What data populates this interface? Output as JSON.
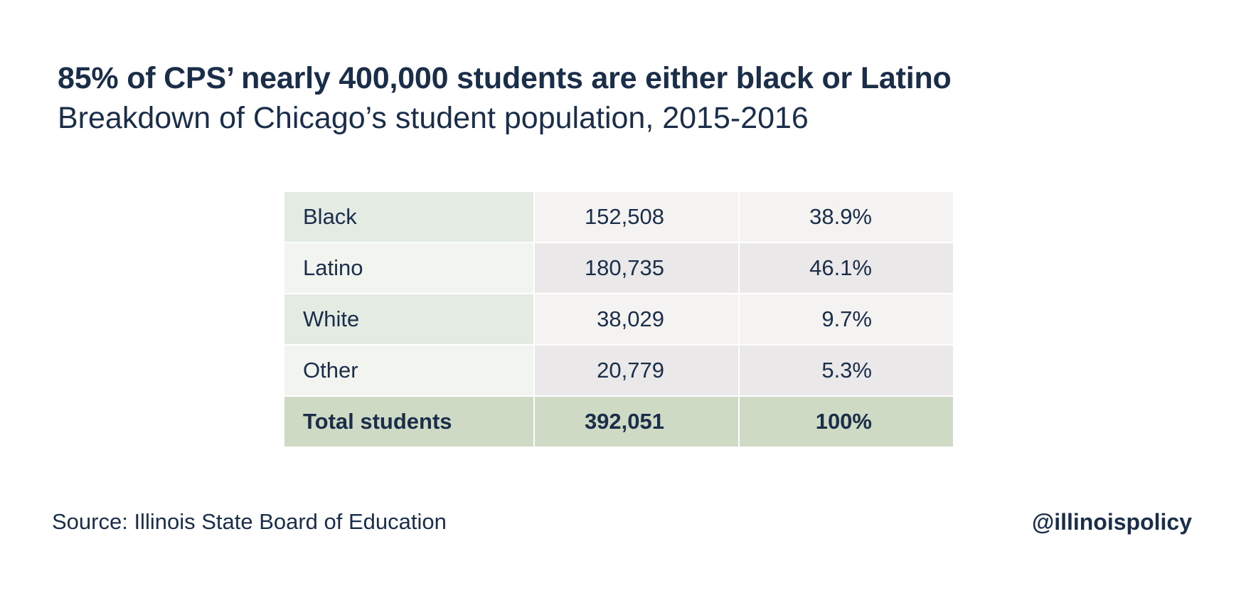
{
  "title": "85% of CPS’ nearly 400,000 students are either black or Latino",
  "subtitle": "Breakdown of Chicago’s student population, 2015-2016",
  "source": "Source: Illinois State Board of Education",
  "handle": "@illinoispolicy",
  "colors": {
    "text": "#1a2e4a",
    "label_col_odd": "#e4ebe2",
    "label_col_even": "#f1f4ef",
    "value_col_odd": "#f5f3f1",
    "value_col_even": "#eae8e9",
    "total_row": "#cfdac4"
  },
  "chart_data": {
    "type": "table",
    "rows": [
      {
        "label": "Black",
        "count": "152,508",
        "percent": "38.9%"
      },
      {
        "label": "Latino",
        "count": "180,735",
        "percent": "46.1%"
      },
      {
        "label": "White",
        "count": "38,029",
        "percent": "9.7%"
      },
      {
        "label": "Other",
        "count": "20,779",
        "percent": "5.3%"
      }
    ],
    "total": {
      "label": "Total students",
      "count": "392,051",
      "percent": "100%"
    }
  }
}
